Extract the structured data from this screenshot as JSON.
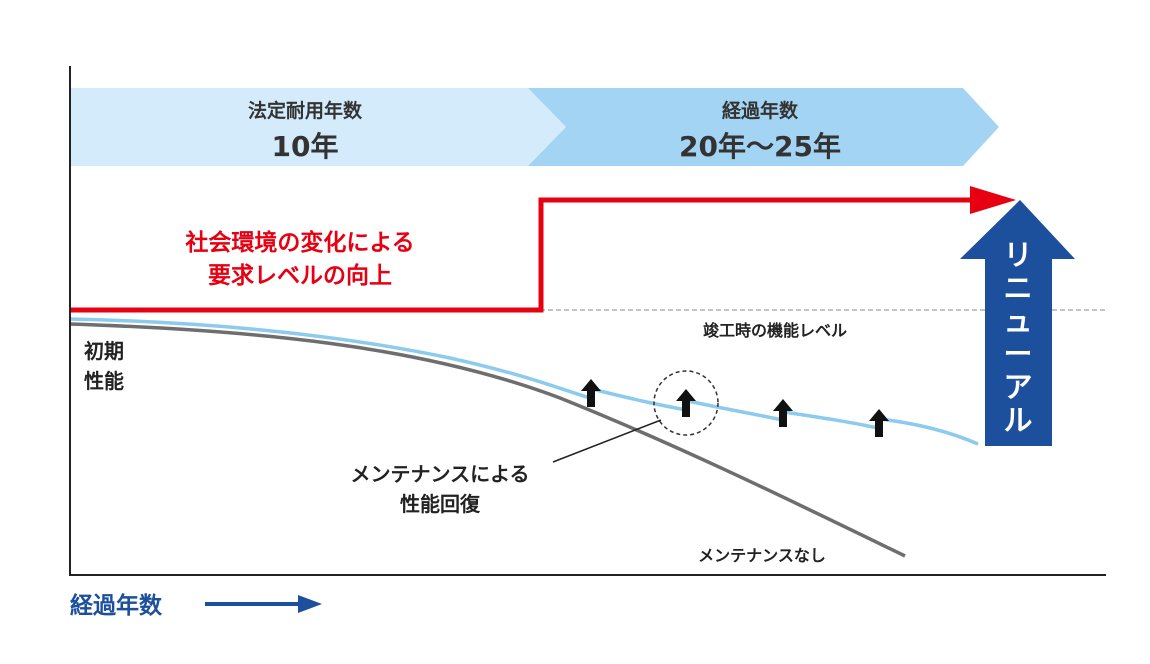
{
  "phases": [
    {
      "title": "法定耐用年数",
      "value": "10年",
      "color": "#d3ebfa"
    },
    {
      "title": "経過年数",
      "value": "20年〜25年",
      "color": "#a4d4f3"
    }
  ],
  "requirement": {
    "line1": "社会環境の変化による",
    "line2": "要求レベルの向上",
    "color": "#e60012"
  },
  "renewal": {
    "label_chars": [
      "リ",
      "ニ",
      "ュ",
      "ー",
      "ア",
      "ル"
    ],
    "color": "#1c4f9c"
  },
  "completion_label": "竣工時の機能レベル",
  "initial_performance": {
    "line1": "初期",
    "line2": "性能"
  },
  "maintenance_callout": {
    "line1": "メンテナンスによる",
    "line2": "性能回復"
  },
  "no_maintenance_label": "メンテナンスなし",
  "x_axis_label": "経過年数",
  "colors": {
    "maintained_curve": "#8ccbee",
    "unmaintained_curve": "#6e6e6e",
    "axis": "#222222",
    "text": "#222222",
    "dashed_line": "#888888"
  }
}
